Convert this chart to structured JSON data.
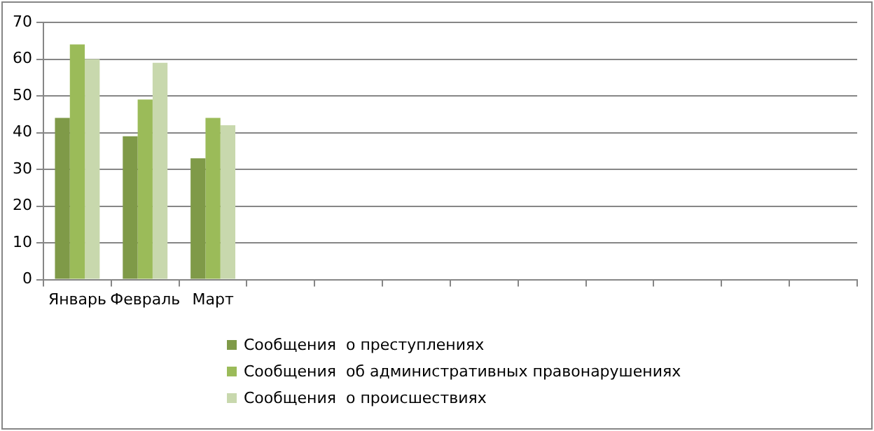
{
  "chart_data": {
    "type": "bar",
    "categories": [
      "Январь",
      "Февраль",
      "Март",
      null,
      null,
      null,
      null,
      null,
      null,
      null,
      null,
      null
    ],
    "series": [
      {
        "name": "Сообщения  о преступлениях",
        "color": "#7f9a48",
        "values": [
          44,
          39,
          33,
          null,
          null,
          null,
          null,
          null,
          null,
          null,
          null,
          null
        ]
      },
      {
        "name": "Сообщения  об административных правонарушениях",
        "color": "#9bbb59",
        "values": [
          64,
          49,
          44,
          null,
          null,
          null,
          null,
          null,
          null,
          null,
          null,
          null
        ]
      },
      {
        "name": "Сообщения  о происшествиях",
        "color": "#c8d8ad",
        "values": [
          60,
          59,
          42,
          null,
          null,
          null,
          null,
          null,
          null,
          null,
          null,
          null
        ]
      }
    ],
    "ylim": [
      0,
      70
    ],
    "yticks": [
      0,
      10,
      20,
      30,
      40,
      50,
      60,
      70
    ],
    "grid": "y",
    "legend": "bottom"
  }
}
